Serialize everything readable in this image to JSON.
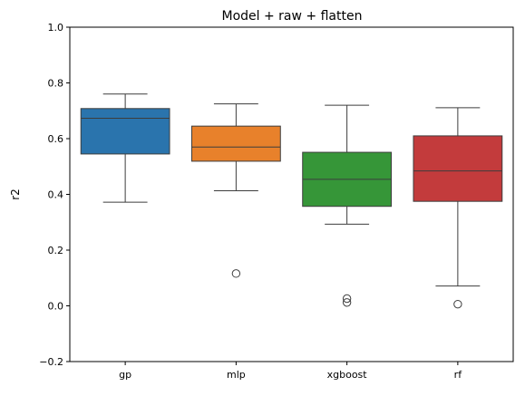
{
  "chart_data": {
    "type": "box",
    "title": "Model + raw + flatten",
    "xlabel": "",
    "ylabel": "r2",
    "ylim": [
      -0.2,
      1.0
    ],
    "yticks": [
      -0.2,
      0.0,
      0.2,
      0.4,
      0.6,
      0.8,
      1.0
    ],
    "ytick_labels": [
      "−0.2",
      "0.0",
      "0.2",
      "0.4",
      "0.6",
      "0.8",
      "1.0"
    ],
    "grid": false,
    "legend": "none",
    "categories": [
      "gp",
      "mlp",
      "xgboost",
      "rf"
    ],
    "series": [
      {
        "category": "gp",
        "color": "#2a74ad",
        "whisker_low": 0.372,
        "q1": 0.545,
        "median": 0.673,
        "q3": 0.708,
        "whisker_high": 0.76,
        "outliers": []
      },
      {
        "category": "mlp",
        "color": "#e8812b",
        "whisker_low": 0.413,
        "q1": 0.519,
        "median": 0.57,
        "q3": 0.645,
        "whisker_high": 0.725,
        "outliers": [
          0.116
        ]
      },
      {
        "category": "xgboost",
        "color": "#369638",
        "whisker_low": 0.293,
        "q1": 0.357,
        "median": 0.454,
        "q3": 0.551,
        "whisker_high": 0.72,
        "outliers": [
          0.026,
          0.012
        ]
      },
      {
        "category": "rf",
        "color": "#c33b3c",
        "whisker_low": 0.071,
        "q1": 0.375,
        "median": 0.484,
        "q3": 0.61,
        "whisker_high": 0.711,
        "outliers": [
          0.006
        ]
      }
    ]
  }
}
